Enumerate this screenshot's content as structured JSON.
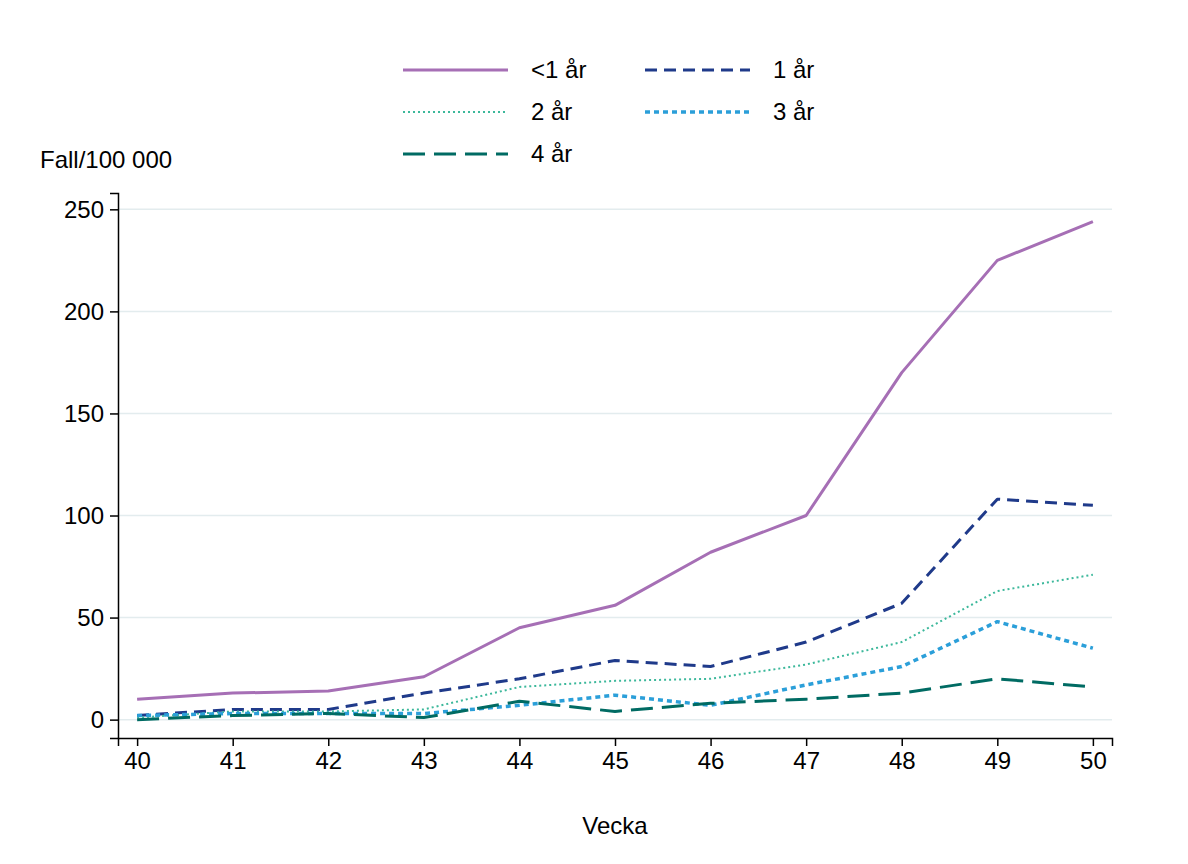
{
  "chart_data": {
    "type": "line",
    "y_label": "Fall/100 000",
    "x_label": "Vecka",
    "x": [
      40,
      41,
      42,
      43,
      44,
      45,
      46,
      47,
      48,
      49,
      50
    ],
    "xlim": [
      39.8,
      50.2
    ],
    "xticks": [
      40,
      41,
      42,
      43,
      44,
      45,
      46,
      47,
      48,
      49,
      50
    ],
    "ylim": [
      -9,
      258
    ],
    "yticks": [
      0,
      50,
      100,
      150,
      200,
      250
    ],
    "grid": true,
    "legend": "top",
    "series": [
      {
        "name": "<1 år",
        "color": "#a66fb5",
        "line_style": "solid",
        "values": [
          10,
          13,
          14,
          21,
          45,
          56,
          82,
          100,
          170,
          225,
          244
        ]
      },
      {
        "name": "1 år",
        "color": "#1f3a8a",
        "line_style": "dashed",
        "values": [
          2,
          5,
          5,
          13,
          20,
          29,
          26,
          38,
          57,
          108,
          105
        ]
      },
      {
        "name": "2 år",
        "color": "#3cb89b",
        "line_style": "dotted",
        "values": [
          1,
          4,
          4,
          5,
          16,
          19,
          20,
          27,
          38,
          63,
          71
        ]
      },
      {
        "name": "3 år",
        "color": "#2b9fd9",
        "line_style": "short-dashed",
        "values": [
          2,
          3,
          3,
          3,
          7,
          12,
          7,
          17,
          26,
          48,
          35
        ]
      },
      {
        "name": "4 år",
        "color": "#006b63",
        "line_style": "long-dashed",
        "values": [
          0,
          2,
          3,
          1,
          9,
          4,
          8,
          10,
          13,
          20,
          16
        ]
      }
    ]
  }
}
